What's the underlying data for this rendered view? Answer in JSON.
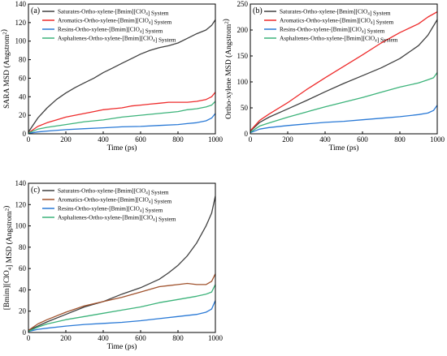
{
  "chart_data": [
    {
      "type": "line",
      "panel_label": "(a)",
      "xlabel": "Time (ps)",
      "ylabel": "SARA MSD (Angstrom^2)",
      "xlim": [
        0,
        1000
      ],
      "ylim": [
        0,
        140
      ],
      "xticks": [
        0,
        200,
        400,
        600,
        800,
        1000
      ],
      "yticks": [
        0,
        20,
        40,
        60,
        80,
        100,
        120,
        140
      ],
      "legend_position": "top-left",
      "series": [
        {
          "name": "Saturates-Ortho-xylene-[Bmim][ClO4] System",
          "color": "#404040",
          "x": [
            0,
            50,
            100,
            150,
            200,
            250,
            300,
            350,
            400,
            450,
            500,
            550,
            600,
            650,
            700,
            750,
            800,
            850,
            900,
            950,
            980,
            1000
          ],
          "y": [
            2,
            17,
            28,
            37,
            44,
            50,
            55,
            60,
            66,
            71,
            76,
            81,
            86,
            90,
            93,
            95,
            98,
            103,
            108,
            112,
            117,
            123
          ]
        },
        {
          "name": "Aromatics-Ortho-xylene-[Bmim][ClO4] System",
          "color": "#ee2b2b",
          "x": [
            0,
            50,
            100,
            150,
            200,
            250,
            300,
            350,
            400,
            450,
            500,
            550,
            600,
            650,
            700,
            750,
            800,
            850,
            900,
            950,
            980,
            1000
          ],
          "y": [
            1,
            8,
            12,
            15,
            18,
            20,
            22,
            24,
            26,
            27,
            28,
            30,
            31,
            32,
            33,
            34,
            34,
            34,
            35,
            37,
            40,
            45
          ]
        },
        {
          "name": "Resins-Ortho-xylene-[Bmim][ClO4] System",
          "color": "#2979d6",
          "x": [
            0,
            50,
            100,
            200,
            300,
            400,
            500,
            600,
            700,
            800,
            850,
            900,
            950,
            980,
            1000
          ],
          "y": [
            0.5,
            2,
            3,
            4.5,
            5.5,
            6.5,
            7.5,
            8,
            9,
            10,
            11,
            12,
            14,
            17,
            22
          ]
        },
        {
          "name": "Asphaltenes-Ortho-xylene-[Bmim][ClO4] System",
          "color": "#3cb37a",
          "x": [
            0,
            50,
            100,
            200,
            300,
            400,
            500,
            600,
            700,
            800,
            850,
            900,
            950,
            980,
            1000
          ],
          "y": [
            1,
            5,
            7,
            10,
            13,
            15,
            18,
            20,
            22,
            24,
            26,
            27,
            29,
            31,
            35
          ]
        }
      ]
    },
    {
      "type": "line",
      "panel_label": "(b)",
      "xlabel": "Time (ps)",
      "ylabel": "Ortho-xylene MSD (Angstrom^2)",
      "xlim": [
        0,
        1000
      ],
      "ylim": [
        0,
        250
      ],
      "xticks": [
        0,
        200,
        400,
        600,
        800,
        1000
      ],
      "yticks": [
        0,
        50,
        100,
        150,
        200,
        250
      ],
      "legend_position": "top-left",
      "series": [
        {
          "name": "Saturates-Ortho-xylene-[Bmim][ClO4] System",
          "color": "#404040",
          "x": [
            0,
            50,
            100,
            200,
            300,
            400,
            500,
            600,
            700,
            800,
            900,
            950,
            1000
          ],
          "y": [
            5,
            22,
            32,
            48,
            64,
            81,
            97,
            112,
            127,
            145,
            170,
            190,
            220
          ]
        },
        {
          "name": "Aromatics-Ortho-xylene-[Bmim][ClO4] System",
          "color": "#ee2b2b",
          "x": [
            0,
            50,
            100,
            200,
            300,
            400,
            500,
            600,
            700,
            800,
            900,
            950,
            1000
          ],
          "y": [
            6,
            26,
            38,
            60,
            85,
            108,
            130,
            152,
            175,
            195,
            212,
            225,
            235
          ]
        },
        {
          "name": "Resins-Ortho-xylene-[Bmim][ClO4] System",
          "color": "#2979d6",
          "x": [
            0,
            50,
            100,
            200,
            300,
            400,
            500,
            600,
            700,
            800,
            900,
            950,
            980,
            1000
          ],
          "y": [
            2,
            9,
            12,
            16,
            19,
            22,
            24,
            27,
            30,
            33,
            37,
            40,
            45,
            55
          ]
        },
        {
          "name": "Asphaltenes-Ortho-xylene-[Bmim][ClO4] System",
          "color": "#3cb37a",
          "x": [
            0,
            50,
            100,
            200,
            300,
            400,
            500,
            600,
            700,
            800,
            900,
            950,
            980,
            1000
          ],
          "y": [
            3,
            15,
            21,
            32,
            42,
            52,
            61,
            70,
            80,
            90,
            98,
            104,
            108,
            118
          ]
        }
      ]
    },
    {
      "type": "line",
      "panel_label": "(c)",
      "xlabel": "Time (ps)",
      "ylabel": "[Bmim][ClO4] MSD (Angstrom^2)",
      "xlim": [
        0,
        1000
      ],
      "ylim": [
        0,
        140
      ],
      "xticks": [
        0,
        200,
        400,
        600,
        800,
        1000
      ],
      "yticks": [
        0,
        20,
        40,
        60,
        80,
        100,
        120,
        140
      ],
      "legend_position": "top-left",
      "series": [
        {
          "name": "Saturates-Ortho-xylene-[Bmim][ClO4] System",
          "color": "#404040",
          "x": [
            0,
            50,
            100,
            200,
            300,
            400,
            500,
            600,
            700,
            750,
            800,
            850,
            900,
            950,
            980,
            1000
          ],
          "y": [
            2,
            6,
            10,
            17,
            24,
            29,
            36,
            42,
            50,
            56,
            63,
            72,
            84,
            100,
            112,
            128
          ]
        },
        {
          "name": "Aromatics-Ortho-xylene-[Bmim][ClO4] System",
          "color": "#a0522d",
          "x": [
            0,
            50,
            100,
            200,
            300,
            400,
            500,
            600,
            700,
            750,
            800,
            850,
            900,
            950,
            980,
            1000
          ],
          "y": [
            2,
            8,
            12,
            19,
            25,
            29,
            33,
            38,
            43,
            44,
            45,
            46,
            45,
            45,
            48,
            55
          ]
        },
        {
          "name": "Resins-Ortho-xylene-[Bmim][ClO4] System",
          "color": "#2979d6",
          "x": [
            0,
            50,
            100,
            200,
            300,
            400,
            500,
            600,
            700,
            800,
            900,
            950,
            980,
            1000
          ],
          "y": [
            1,
            3,
            4,
            6,
            7.5,
            8.5,
            9.5,
            11,
            13,
            15,
            17,
            19,
            22,
            30
          ]
        },
        {
          "name": "Asphaltenes-Ortho-xylene-[Bmim][ClO4] System",
          "color": "#3cb37a",
          "x": [
            0,
            50,
            100,
            200,
            300,
            400,
            500,
            600,
            700,
            800,
            900,
            950,
            980,
            1000
          ],
          "y": [
            1,
            5,
            8,
            12,
            15,
            18,
            21,
            24,
            28,
            31,
            34,
            36,
            38,
            45
          ]
        }
      ]
    }
  ]
}
